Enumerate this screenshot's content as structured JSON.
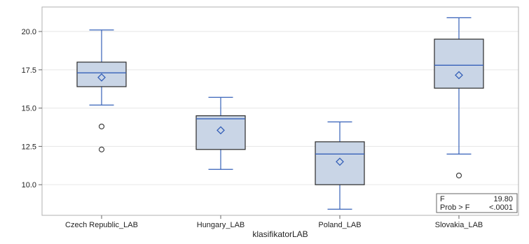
{
  "chart_data": {
    "type": "box",
    "xlabel": "klasifikatorLAB",
    "ylabel": "",
    "ylim": [
      8.0,
      21.6
    ],
    "yticks": [
      10.0,
      12.5,
      15.0,
      17.5,
      20.0
    ],
    "ytick_labels": [
      "10.0",
      "12.5",
      "15.0",
      "17.5",
      "20.0"
    ],
    "grid": true,
    "categories": [
      "Czech Republic_LAB",
      "Hungary_LAB",
      "Poland_LAB",
      "Slovakia_LAB"
    ],
    "boxes": [
      {
        "category": "Czech Republic_LAB",
        "whisker_low": 15.2,
        "q1": 16.4,
        "median": 17.3,
        "q3": 18.0,
        "whisker_high": 20.1,
        "mean": 17.0,
        "outliers": [
          13.8,
          12.3
        ]
      },
      {
        "category": "Hungary_LAB",
        "whisker_low": 11.0,
        "q1": 12.3,
        "median": 14.3,
        "q3": 14.5,
        "whisker_high": 15.7,
        "mean": 13.55,
        "outliers": []
      },
      {
        "category": "Poland_LAB",
        "whisker_low": 8.4,
        "q1": 10.0,
        "median": 12.0,
        "q3": 12.8,
        "whisker_high": 14.1,
        "mean": 11.5,
        "outliers": []
      },
      {
        "category": "Slovakia_LAB",
        "whisker_low": 12.0,
        "q1": 16.3,
        "median": 17.8,
        "q3": 19.5,
        "whisker_high": 20.9,
        "mean": 17.15,
        "outliers": [
          10.6
        ]
      }
    ],
    "stats": {
      "rows": [
        {
          "label": "F",
          "value": "19.80"
        },
        {
          "label": "Prob > F",
          "value": "<.0001"
        }
      ],
      "placement": "bottom-right"
    },
    "colors": {
      "box_fill": "#c9d5e6",
      "box_edge": "#2b2b2b",
      "line": "#3560b8",
      "grid": "#e6e6e6",
      "frame": "#b0b0b0",
      "outlier": "#333333"
    }
  }
}
